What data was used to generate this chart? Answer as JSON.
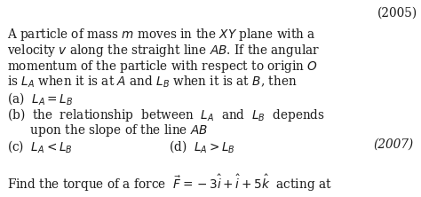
{
  "background_color": "#ffffff",
  "top_right_text": "(2005)",
  "line1": "A particle of mass $m$ moves in the $XY$ plane with a",
  "line2": "velocity $v$ along the straight line $AB$. If the angular",
  "line3": "momentum of the particle with respect to origin $O$",
  "line4": "is $L_A$ when it is at $A$ and $L_B$ when it is at $B$, then",
  "option_a": "(a)  $L_A = L_B$",
  "option_b_1": "(b)  the  relationship  between  $L_A$  and  $L_B$  depends",
  "option_b_2": "      upon the slope of the line $AB$",
  "option_c": "(c)  $L_A < L_B$",
  "option_d": "(d)  $L_A > L_B$",
  "year": "(2007)",
  "last_line": "Find the torque of a force  $\\vec{F}=-3\\hat{i}+\\hat{i}+5\\hat{k}$  acting at",
  "font_size": 9.8,
  "text_color": "#1a1a1a"
}
